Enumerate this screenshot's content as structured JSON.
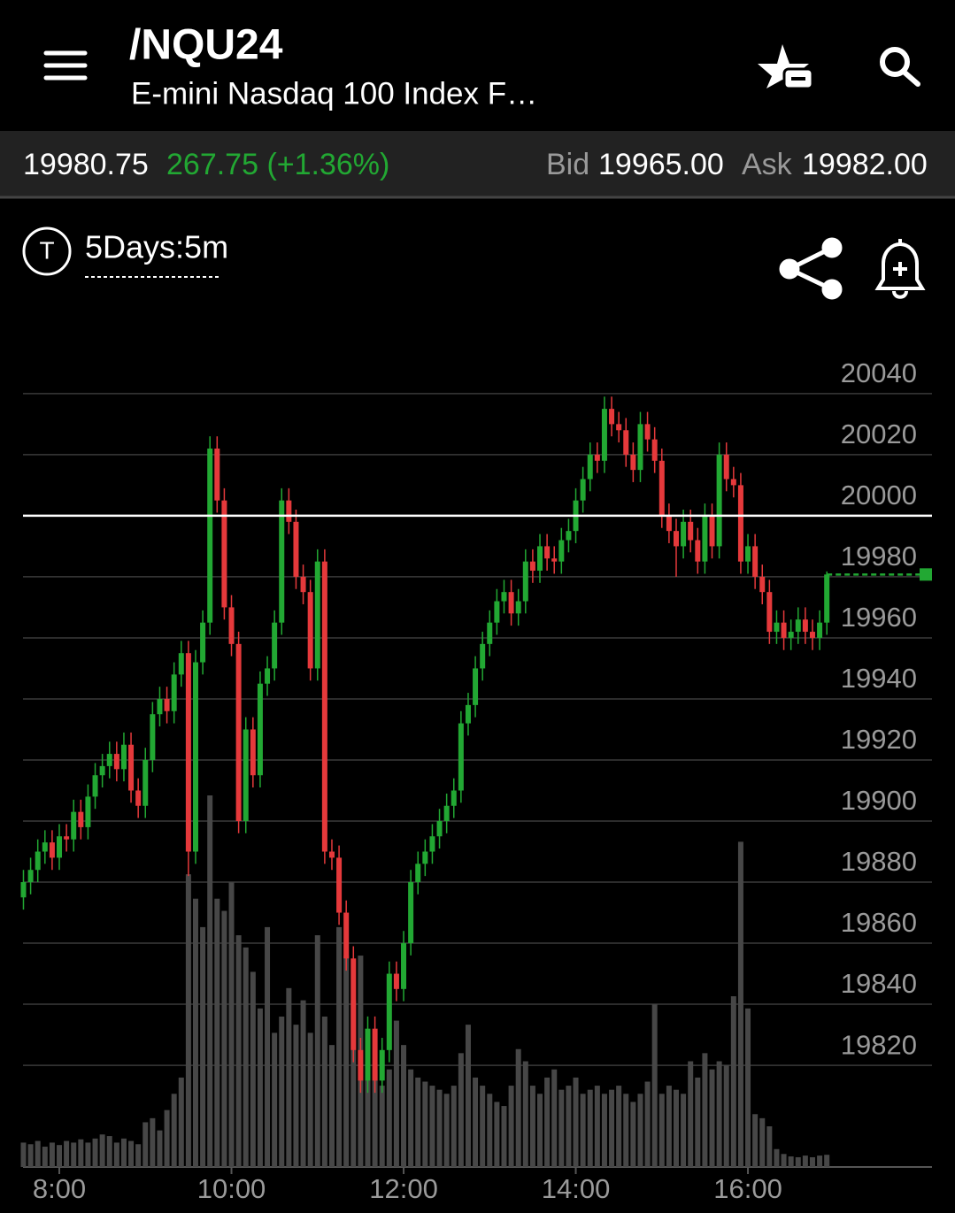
{
  "header": {
    "symbol": "/NQU24",
    "name": "E-mini Nasdaq 100 Index F…"
  },
  "quote": {
    "last": "19980.75",
    "change": "267.75 (+1.36%)",
    "bid_label": "Bid",
    "bid": "19965.00",
    "ask_label": "Ask",
    "ask": "19982.00"
  },
  "toolbar": {
    "badge": "T",
    "period": "5Days:5m"
  },
  "chart_data": {
    "type": "candlestick",
    "x": [
      455,
      460,
      465,
      470,
      475,
      480,
      485,
      490,
      495,
      500,
      505,
      510,
      515,
      520,
      525,
      530,
      535,
      540,
      545,
      550,
      555,
      560,
      565,
      570,
      575,
      580,
      585,
      590,
      595,
      600,
      605,
      610,
      615,
      620,
      625,
      630,
      635,
      640,
      645,
      650,
      655,
      660,
      665,
      670,
      675,
      680,
      685,
      690,
      695,
      700,
      705,
      710,
      715,
      720,
      725,
      730,
      735,
      740,
      745,
      750,
      755,
      760,
      765,
      770,
      775,
      780,
      785,
      790,
      795,
      800,
      805,
      810,
      815,
      820,
      825,
      830,
      835,
      840,
      845,
      850,
      855,
      860,
      865,
      870,
      875,
      880,
      885,
      890,
      895,
      900,
      905,
      910,
      915,
      920,
      925,
      930,
      935,
      940,
      945,
      950,
      955,
      960,
      965,
      970,
      975,
      980,
      985,
      990,
      995,
      1000,
      1005,
      1010,
      1015
    ],
    "open": [
      19875,
      19880,
      19884,
      19890,
      19893,
      19888,
      19895,
      19894,
      19903,
      19898,
      19908,
      19915,
      19918,
      19922,
      19917,
      19925,
      19910,
      19905,
      19920,
      19935,
      19940,
      19936,
      19948,
      19955,
      19890,
      19952,
      19965,
      20022,
      20005,
      19970,
      19958,
      19900,
      19930,
      19915,
      19945,
      19950,
      19965,
      20005,
      19998,
      19980,
      19975,
      19950,
      19985,
      19890,
      19888,
      19870,
      19855,
      19825,
      19815,
      19832,
      19815,
      19825,
      19850,
      19845,
      19860,
      19880,
      19886,
      19890,
      19895,
      19900,
      19905,
      19910,
      19932,
      19938,
      19950,
      19958,
      19965,
      19972,
      19975,
      19968,
      19972,
      19985,
      19982,
      19990,
      19986,
      19985,
      19992,
      19995,
      20005,
      20012,
      20020,
      20018,
      20035,
      20030,
      20028,
      20020,
      20015,
      20030,
      20025,
      20018,
      20000,
      19995,
      19990,
      19998,
      19992,
      19985,
      20000,
      19990,
      20020,
      20012,
      20010,
      19985,
      19990,
      19980,
      19975,
      19962,
      19965,
      19960,
      19962,
      19966,
      19962,
      19960,
      19965
    ],
    "high": [
      19884,
      19888,
      19894,
      19897,
      19897,
      19899,
      19899,
      19907,
      19907,
      19912,
      19919,
      19922,
      19926,
      19926,
      19929,
      19929,
      19914,
      19924,
      19939,
      19944,
      19944,
      19952,
      19959,
      19959,
      19956,
      19969,
      20026,
      20026,
      20009,
      19974,
      19962,
      19934,
      19934,
      19949,
      19954,
      19969,
      20009,
      20009,
      20002,
      19984,
      19979,
      19989,
      19989,
      19894,
      19892,
      19874,
      19859,
      19829,
      19836,
      19836,
      19829,
      19854,
      19854,
      19864,
      19884,
      19890,
      19894,
      19899,
      19904,
      19909,
      19914,
      19936,
      19942,
      19954,
      19962,
      19969,
      19976,
      19979,
      19979,
      19976,
      19989,
      19989,
      19994,
      19994,
      19990,
      19996,
      19999,
      20009,
      20016,
      20024,
      20024,
      20039,
      20039,
      20034,
      20032,
      20024,
      20034,
      20034,
      20029,
      20022,
      20004,
      19999,
      20002,
      20002,
      19996,
      20004,
      20004,
      20024,
      20024,
      20016,
      20014,
      19994,
      19994,
      19984,
      19979,
      19969,
      19969,
      19966,
      19970,
      19970,
      19966,
      19969,
      19981.75
    ],
    "low": [
      19871,
      19876,
      19880,
      19886,
      19884,
      19884,
      19890,
      19890,
      19894,
      19894,
      19904,
      19911,
      19914,
      19913,
      19913,
      19906,
      19901,
      19901,
      19916,
      19931,
      19932,
      19932,
      19944,
      19882,
      19886,
      19948,
      19961,
      20001,
      19966,
      19954,
      19896,
      19896,
      19911,
      19911,
      19941,
      19946,
      19961,
      19994,
      19976,
      19971,
      19946,
      19946,
      19886,
      19884,
      19866,
      19851,
      19821,
      19811,
      19811,
      19811,
      19811,
      19821,
      19841,
      19841,
      19856,
      19876,
      19882,
      19886,
      19891,
      19896,
      19901,
      19906,
      19928,
      19934,
      19946,
      19954,
      19961,
      19968,
      19964,
      19964,
      19968,
      19978,
      19978,
      19982,
      19981,
      19981,
      19988,
      19991,
      20001,
      20008,
      20014,
      20014,
      20026,
      20024,
      20016,
      20011,
      20011,
      20021,
      20014,
      19996,
      19991,
      19980,
      19986,
      19988,
      19981,
      19981,
      19986,
      19986,
      20008,
      20006,
      19981,
      19981,
      19976,
      19971,
      19958,
      19958,
      19956,
      19956,
      19958,
      19958,
      19956,
      19956,
      19961
    ],
    "close": [
      19880,
      19884,
      19890,
      19893,
      19888,
      19895,
      19894,
      19903,
      19898,
      19908,
      19915,
      19918,
      19922,
      19917,
      19925,
      19910,
      19905,
      19920,
      19935,
      19940,
      19936,
      19948,
      19955,
      19890,
      19952,
      19965,
      20022,
      20005,
      19970,
      19958,
      19900,
      19930,
      19915,
      19945,
      19950,
      19965,
      20005,
      19998,
      19980,
      19975,
      19950,
      19985,
      19890,
      19888,
      19870,
      19855,
      19825,
      19815,
      19832,
      19815,
      19825,
      19850,
      19845,
      19860,
      19880,
      19886,
      19890,
      19895,
      19900,
      19905,
      19910,
      19932,
      19938,
      19950,
      19958,
      19965,
      19972,
      19975,
      19968,
      19972,
      19985,
      19982,
      19990,
      19986,
      19985,
      19992,
      19995,
      20005,
      20012,
      20020,
      20018,
      20035,
      20030,
      20028,
      20020,
      20015,
      20030,
      20025,
      20018,
      20000,
      19995,
      19990,
      19998,
      19992,
      19985,
      20000,
      19990,
      20020,
      20012,
      20010,
      19985,
      19990,
      19980,
      19975,
      19962,
      19965,
      19960,
      19962,
      19966,
      19962,
      19960,
      19965,
      19980.75
    ],
    "volume": [
      30,
      28,
      32,
      25,
      30,
      27,
      32,
      30,
      34,
      30,
      35,
      40,
      38,
      30,
      35,
      32,
      28,
      55,
      60,
      45,
      70,
      90,
      110,
      360,
      330,
      295,
      457,
      330,
      315,
      350,
      285,
      270,
      240,
      195,
      295,
      165,
      185,
      220,
      175,
      205,
      165,
      285,
      185,
      150,
      295,
      260,
      205,
      260,
      140,
      120,
      100,
      120,
      180,
      150,
      120,
      110,
      105,
      100,
      95,
      90,
      100,
      140,
      175,
      110,
      100,
      90,
      80,
      75,
      100,
      145,
      130,
      100,
      90,
      110,
      120,
      95,
      100,
      110,
      90,
      95,
      100,
      90,
      95,
      100,
      90,
      80,
      90,
      105,
      200,
      90,
      100,
      95,
      90,
      130,
      110,
      140,
      120,
      130,
      125,
      210,
      400,
      195,
      65,
      60,
      50,
      22,
      16,
      13,
      12,
      14,
      12,
      14,
      15
    ],
    "up_color": "#22a833",
    "down_color": "#e5393b",
    "volume_color": "#474747",
    "ylim": [
      19786.7,
      20053
    ],
    "yticks": [
      19820,
      19840,
      19860,
      19880,
      19900,
      19920,
      19940,
      19960,
      19980,
      20000,
      20020,
      20040
    ],
    "xlim": [
      454.7,
      1088.3
    ],
    "xticks": [
      {
        "value": 480,
        "label": "8:00"
      },
      {
        "value": 600,
        "label": "10:00"
      },
      {
        "value": 720,
        "label": "12:00"
      },
      {
        "value": 840,
        "label": "14:00"
      },
      {
        "value": 960,
        "label": "16:00"
      }
    ],
    "y2lim": [
      0,
      1000
    ],
    "reference_line": 20000,
    "grid": true
  }
}
